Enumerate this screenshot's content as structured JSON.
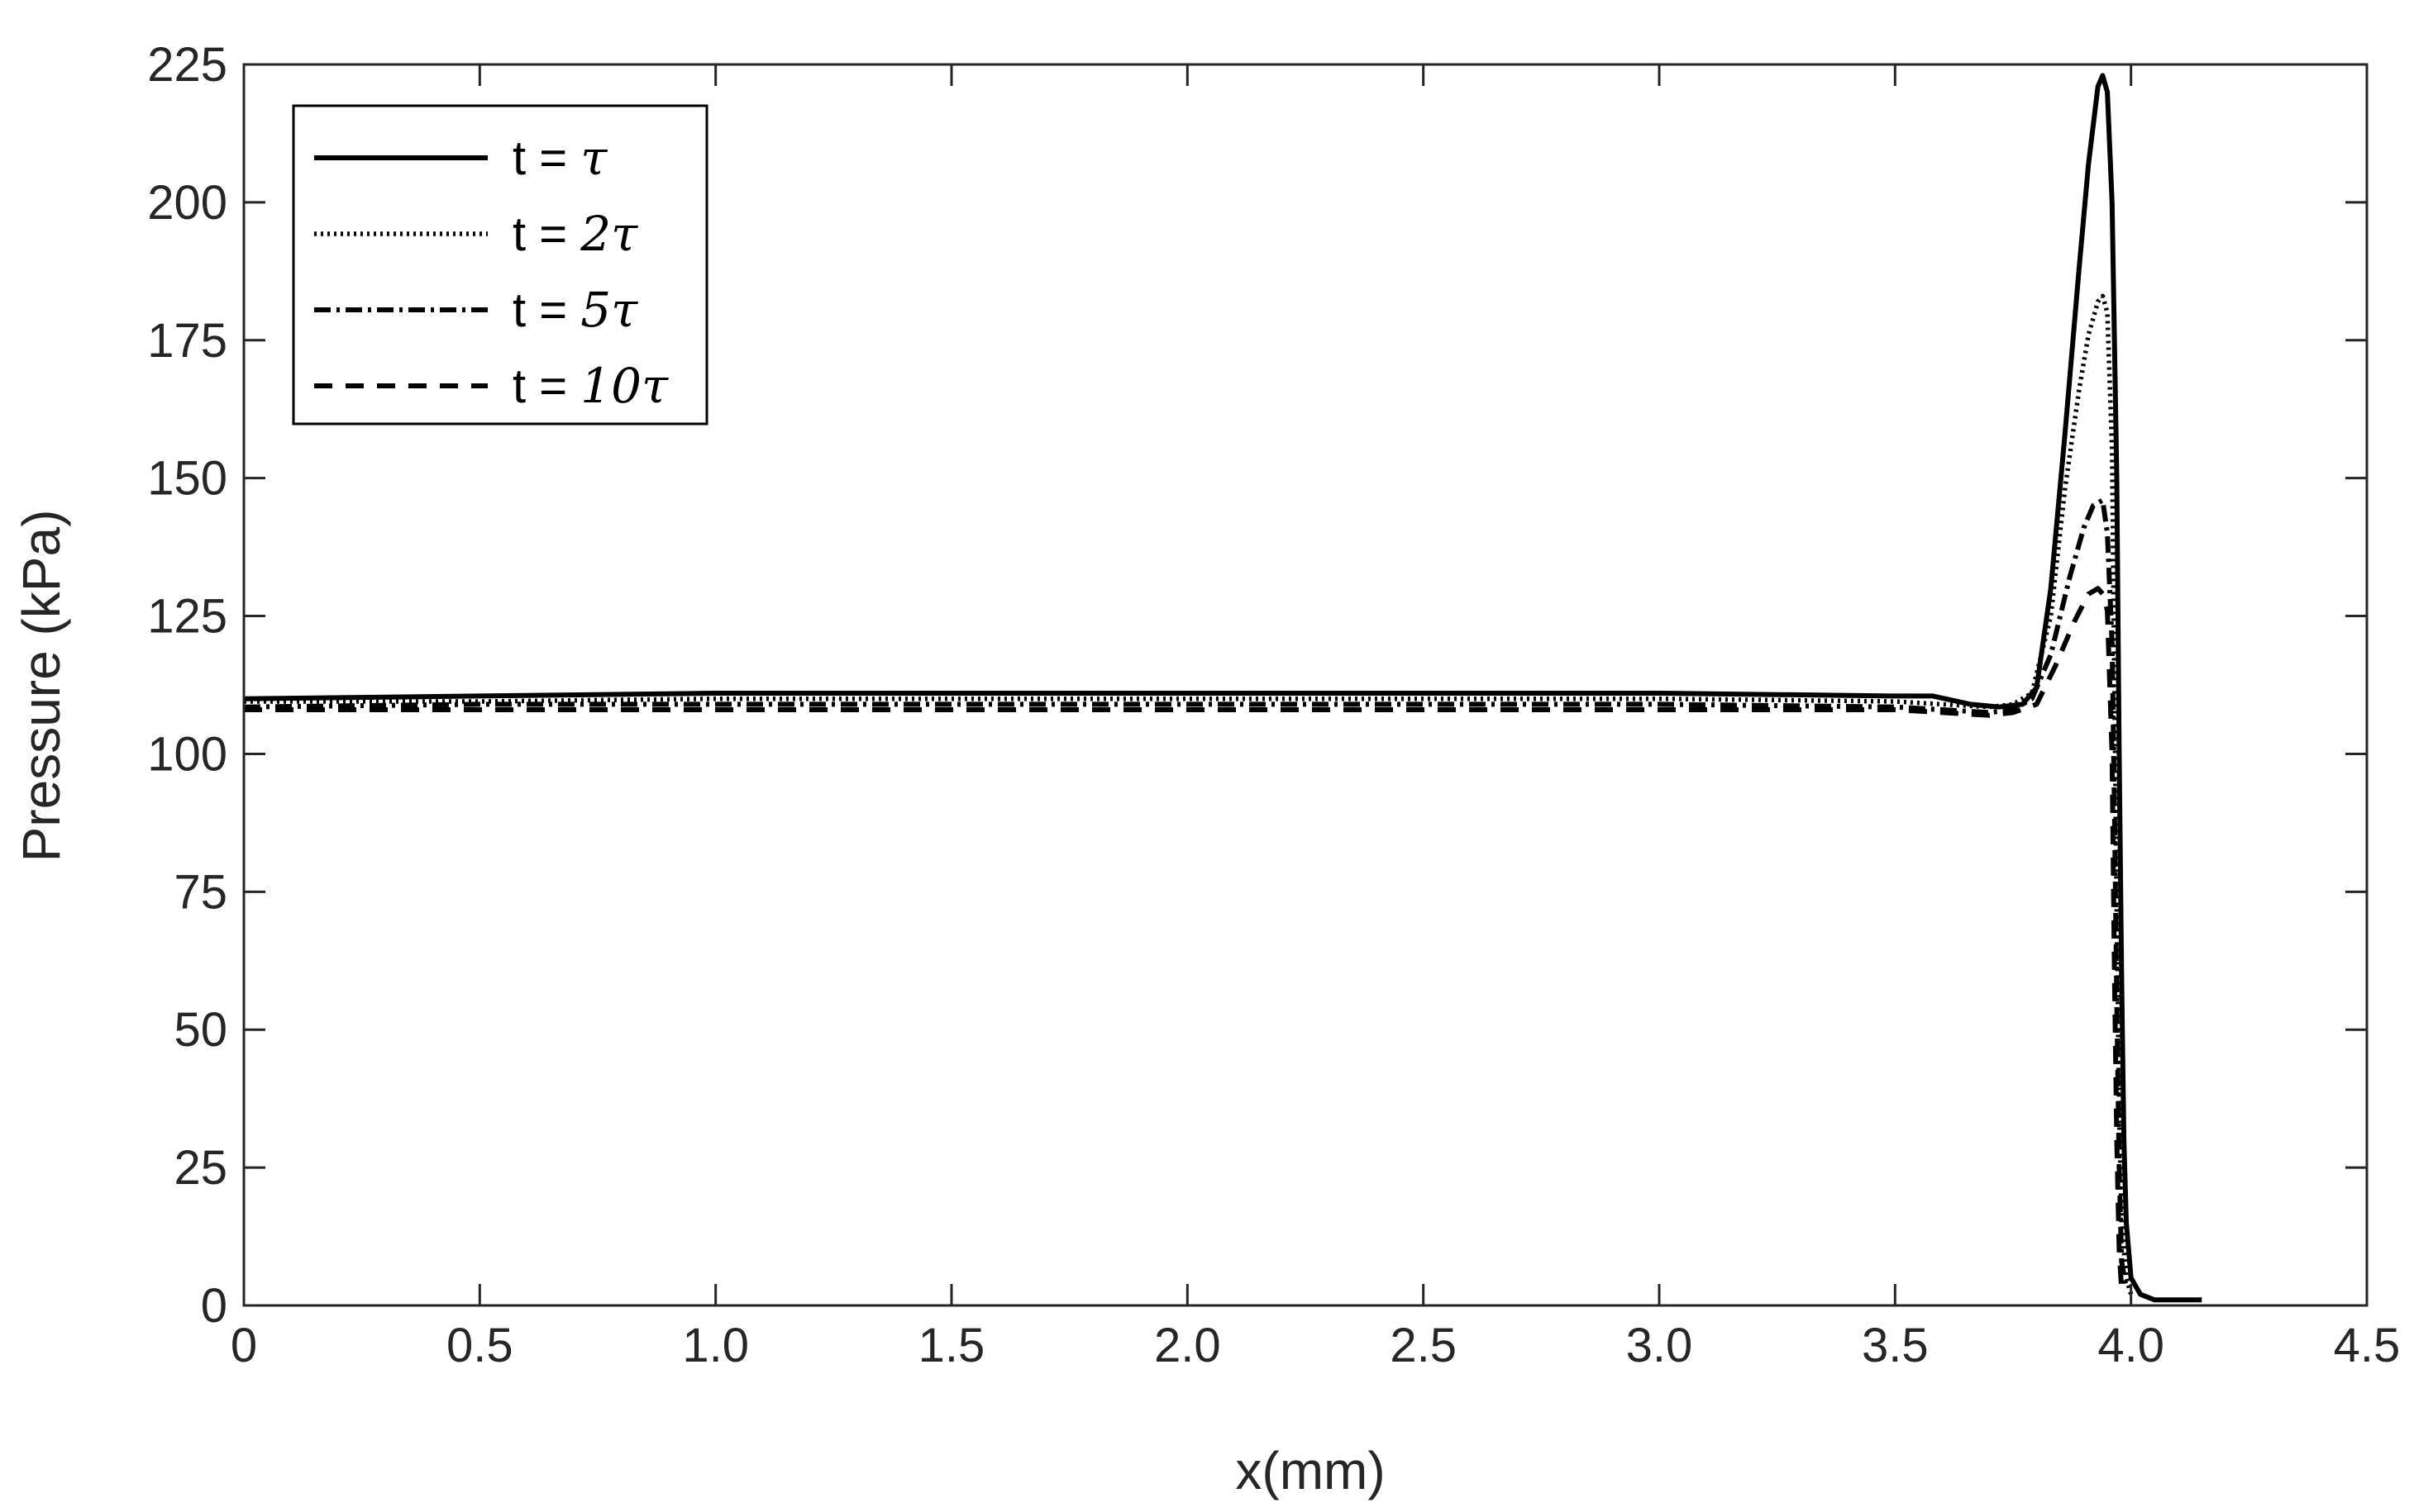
{
  "chart_data": {
    "type": "line",
    "title": "",
    "xlabel": "x(mm)",
    "ylabel": "Pressure (kPa)",
    "xlim": [
      0,
      4.5
    ],
    "ylim": [
      0,
      225
    ],
    "xticks": [
      0,
      0.5,
      1.0,
      1.5,
      2.0,
      2.5,
      3.0,
      3.5,
      4.0,
      4.5
    ],
    "xtick_labels": [
      "0",
      "0.5",
      "1.0",
      "1.5",
      "2.0",
      "2.5",
      "3.0",
      "3.5",
      "4.0",
      "4.5"
    ],
    "yticks": [
      0,
      25,
      50,
      75,
      100,
      125,
      150,
      175,
      200,
      225
    ],
    "ytick_labels": [
      "0",
      "25",
      "50",
      "75",
      "100",
      "125",
      "150",
      "175",
      "200",
      "225"
    ],
    "grid": false,
    "legend_position": "top-left",
    "colors": {
      "line": "#000000",
      "axis": "#262626"
    },
    "series": [
      {
        "name": "t = τ",
        "legend_prefix": "t = ",
        "legend_symbol": "τ",
        "style": "solid",
        "x": [
          0,
          0.5,
          1.0,
          1.5,
          2.0,
          2.5,
          3.0,
          3.5,
          3.58,
          3.66,
          3.72,
          3.77,
          3.8,
          3.83,
          3.86,
          3.89,
          3.91,
          3.93,
          3.94,
          3.95,
          3.96,
          3.97,
          3.975,
          3.98,
          3.985,
          3.99,
          4.0,
          4.02,
          4.05,
          4.1,
          4.15
        ],
        "y": [
          110,
          110.5,
          111,
          111,
          111,
          111,
          111,
          110.5,
          110.5,
          109,
          108.5,
          109,
          112,
          130,
          158,
          188,
          207,
          221,
          223,
          220,
          200,
          150,
          100,
          60,
          30,
          15,
          5,
          2,
          1,
          1,
          1
        ]
      },
      {
        "name": "t = 2τ",
        "legend_prefix": "t = ",
        "legend_symbol": "2τ",
        "style": "dotted",
        "x": [
          0,
          0.5,
          1.0,
          1.5,
          2.0,
          2.5,
          3.0,
          3.5,
          3.6,
          3.7,
          3.75,
          3.79,
          3.83,
          3.86,
          3.89,
          3.91,
          3.93,
          3.94,
          3.95,
          3.96,
          3.965,
          3.97,
          3.975,
          3.98,
          3.99,
          4.0
        ],
        "y": [
          109.5,
          109.5,
          110,
          110,
          110,
          110,
          110,
          109.5,
          109,
          108.5,
          109,
          111,
          125,
          148,
          166,
          176,
          182,
          183,
          180,
          155,
          110,
          70,
          35,
          15,
          5,
          2
        ]
      },
      {
        "name": "t = 5τ",
        "legend_prefix": "t = ",
        "legend_symbol": "5τ",
        "style": "dashdot",
        "x": [
          0,
          0.5,
          1.0,
          1.5,
          2.0,
          2.5,
          3.0,
          3.5,
          3.6,
          3.7,
          3.75,
          3.79,
          3.83,
          3.87,
          3.9,
          3.92,
          3.94,
          3.95,
          3.96,
          3.965,
          3.97,
          3.975,
          3.98,
          3.99
        ],
        "y": [
          108.5,
          109,
          109,
          109,
          109,
          109,
          109,
          108.5,
          108,
          107.5,
          108,
          110,
          118,
          132,
          141,
          145,
          146,
          140,
          120,
          90,
          55,
          25,
          8,
          3
        ]
      },
      {
        "name": "t = 10τ",
        "legend_prefix": "t = ",
        "legend_symbol": "10τ",
        "style": "dashed",
        "x": [
          0,
          0.5,
          1.0,
          1.5,
          2.0,
          2.5,
          3.0,
          3.5,
          3.6,
          3.7,
          3.75,
          3.8,
          3.84,
          3.88,
          3.91,
          3.93,
          3.94,
          3.95,
          3.96,
          3.965,
          3.97,
          3.975,
          3.98
        ],
        "y": [
          108,
          108,
          108,
          108,
          108,
          108,
          108,
          108,
          107.5,
          107,
          107.5,
          109,
          116,
          124,
          129,
          130,
          129,
          126,
          100,
          60,
          30,
          10,
          3
        ]
      }
    ]
  }
}
